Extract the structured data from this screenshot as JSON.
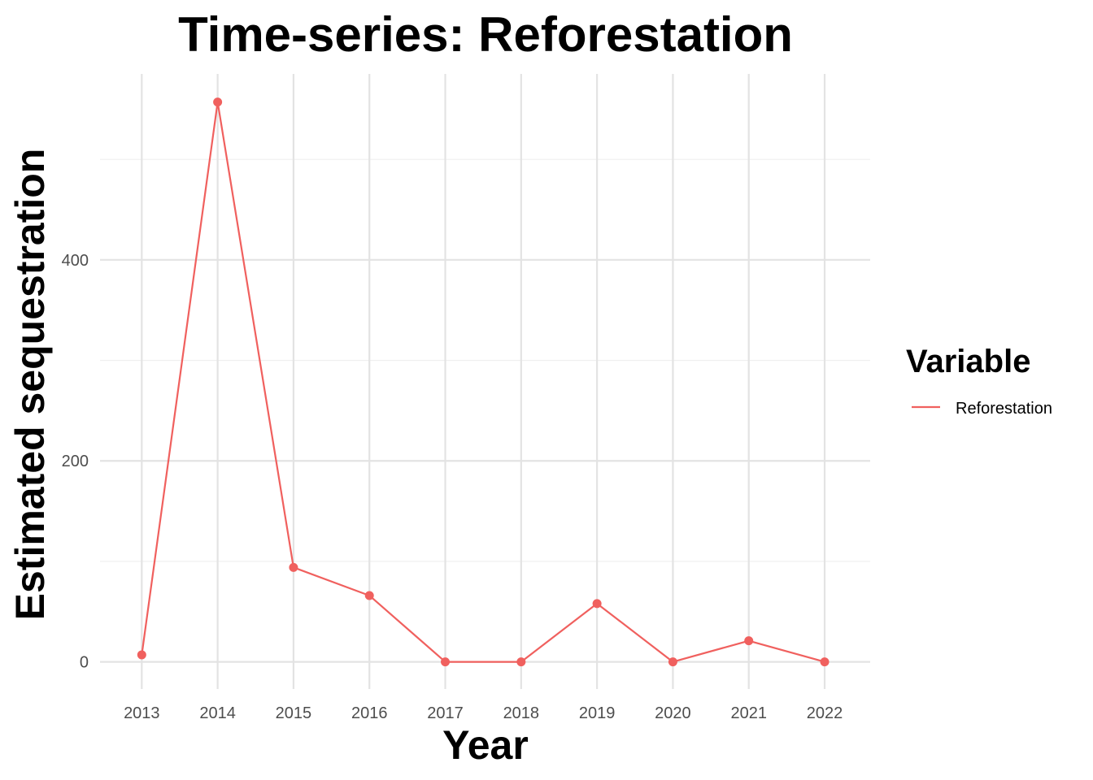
{
  "chart_data": {
    "type": "line",
    "title": "Time-series: Reforestation",
    "xlabel": "Year",
    "ylabel": "Estimated sequestration",
    "x": [
      2013,
      2014,
      2015,
      2016,
      2017,
      2018,
      2019,
      2020,
      2021,
      2022
    ],
    "series": [
      {
        "name": "Reforestation",
        "color": "#f0605e",
        "values": [
          7,
          557,
          94,
          66,
          0,
          0,
          58,
          0,
          21,
          0
        ]
      }
    ],
    "xlim": [
      2012.45,
      2022.6
    ],
    "ylim": [
      -27,
      585
    ],
    "yticks": [
      0,
      200,
      400
    ],
    "yticks_minor": [
      100,
      300,
      500
    ],
    "legend": {
      "title": "Variable",
      "position": "right"
    },
    "grid": true
  }
}
